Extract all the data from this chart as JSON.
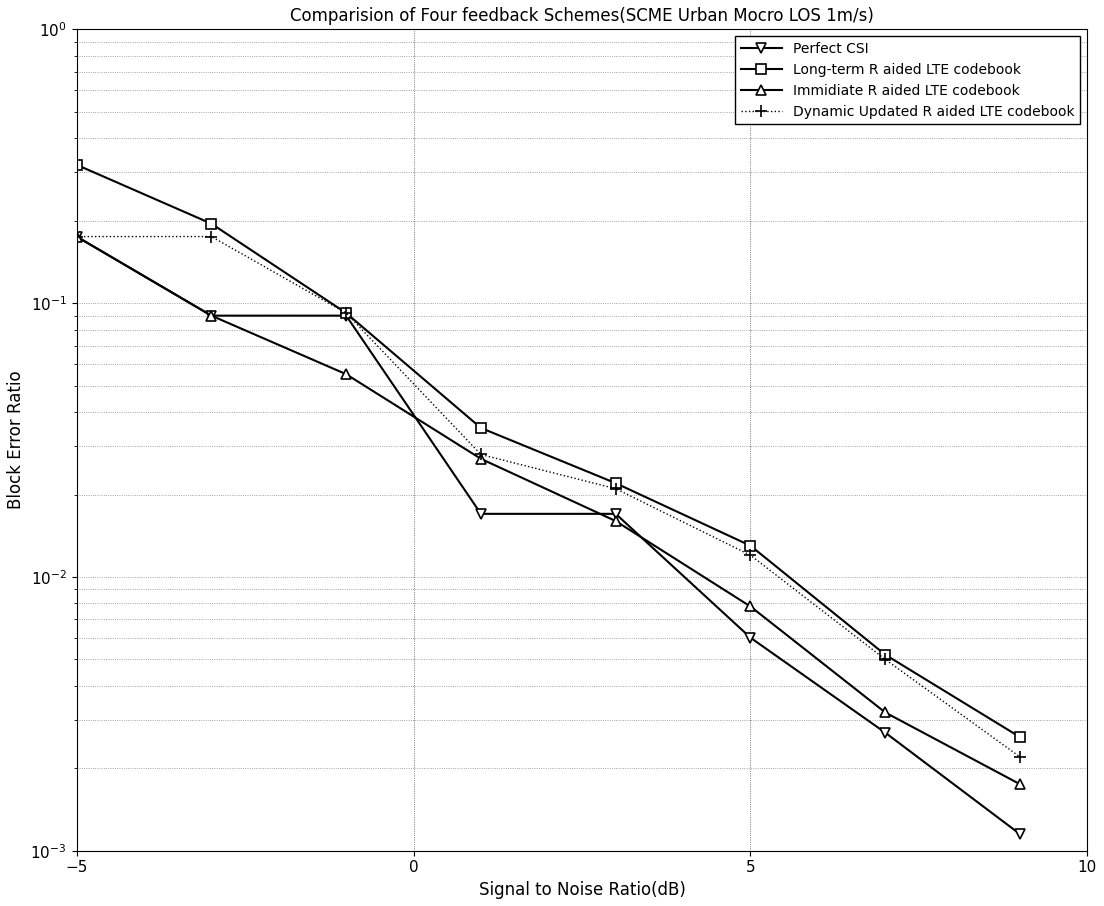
{
  "title": "Comparision of Four feedback Schemes(SCME Urban Mocro LOS 1m/s)",
  "xlabel": "Signal to Noise Ratio(dB)",
  "ylabel": "Block Error Ratio",
  "xlim": [
    -5,
    10
  ],
  "ylim": [
    0.001,
    1.0
  ],
  "series": [
    {
      "key": "perfect_csi",
      "label": "Perfect CSI",
      "x": [
        -5,
        -3,
        -1,
        1,
        3,
        5,
        7,
        9
      ],
      "y": [
        0.175,
        0.09,
        0.09,
        0.017,
        0.017,
        0.006,
        0.0027,
        0.00115
      ],
      "color": "#000000",
      "linestyle": "-",
      "marker": "v",
      "marker_size": 7,
      "linewidth": 1.5,
      "markerfacecolor": "white",
      "markeredgecolor": "#000000"
    },
    {
      "key": "long_term",
      "label": "Long-term R aided LTE codebook",
      "x": [
        -5,
        -3,
        -1,
        1,
        3,
        5,
        7,
        9
      ],
      "y": [
        0.32,
        0.195,
        0.092,
        0.035,
        0.022,
        0.013,
        0.0052,
        0.0026
      ],
      "color": "#000000",
      "linestyle": "-",
      "marker": "s",
      "marker_size": 7,
      "linewidth": 1.5,
      "markerfacecolor": "white",
      "markeredgecolor": "#000000"
    },
    {
      "key": "immediate",
      "label": "Immidiate R aided LTE codebook",
      "x": [
        -5,
        -3,
        -1,
        1,
        3,
        5,
        7,
        9
      ],
      "y": [
        0.175,
        0.09,
        0.055,
        0.027,
        0.016,
        0.0078,
        0.0032,
        0.00175
      ],
      "color": "#000000",
      "linestyle": "-",
      "marker": "^",
      "marker_size": 7,
      "linewidth": 1.5,
      "markerfacecolor": "white",
      "markeredgecolor": "#000000"
    },
    {
      "key": "dynamic",
      "label": "Dynamic Updated R aided LTE codebook",
      "x": [
        -5,
        -3,
        -1,
        1,
        3,
        5,
        7,
        9
      ],
      "y": [
        0.175,
        0.175,
        0.092,
        0.028,
        0.021,
        0.012,
        0.005,
        0.0022
      ],
      "color": "#000000",
      "linestyle": ":",
      "marker": "+",
      "marker_size": 9,
      "linewidth": 1.0,
      "markerfacecolor": "#000000",
      "markeredgecolor": "#000000"
    }
  ],
  "grid_color": "#888888",
  "grid_linestyle": ":",
  "grid_linewidth": 0.6,
  "background_color": "#ffffff",
  "legend_loc": "upper right",
  "title_fontsize": 12,
  "label_fontsize": 12,
  "tick_fontsize": 11,
  "legend_fontsize": 10,
  "xticks": [
    -5,
    0,
    5,
    10
  ],
  "vlines": [
    0,
    5
  ],
  "vline_color": "#888888",
  "vline_style": ":"
}
